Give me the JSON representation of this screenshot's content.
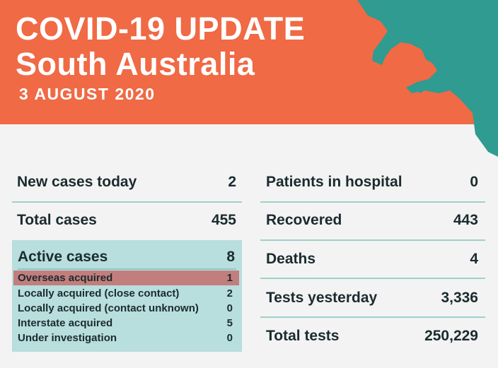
{
  "header": {
    "title_line1": "COVID-19 UPDATE",
    "title_line2": "South Australia",
    "date": "3 AUGUST 2020",
    "colors": {
      "banner": "#ef6a45",
      "map": "#2f9b91",
      "text": "#ffffff"
    }
  },
  "left": {
    "new_cases": {
      "label": "New cases today",
      "value": "2"
    },
    "total_cases": {
      "label": "Total cases",
      "value": "455"
    },
    "active": {
      "label": "Active cases",
      "value": "8",
      "items": [
        {
          "label": "Overseas acquired",
          "value": "1"
        },
        {
          "label": "Locally acquired (close contact)",
          "value": "2"
        },
        {
          "label": "Locally acquired (contact unknown)",
          "value": "0"
        },
        {
          "label": "Interstate acquired",
          "value": "5"
        },
        {
          "label": "Under investigation",
          "value": "0"
        }
      ]
    }
  },
  "right": {
    "hospital": {
      "label": "Patients in hospital",
      "value": "0"
    },
    "recovered": {
      "label": "Recovered",
      "value": "443"
    },
    "deaths": {
      "label": "Deaths",
      "value": "4"
    },
    "tests_yesterday": {
      "label": "Tests yesterday",
      "value": "3,336"
    },
    "total_tests": {
      "label": "Total tests",
      "value": "250,229"
    }
  }
}
